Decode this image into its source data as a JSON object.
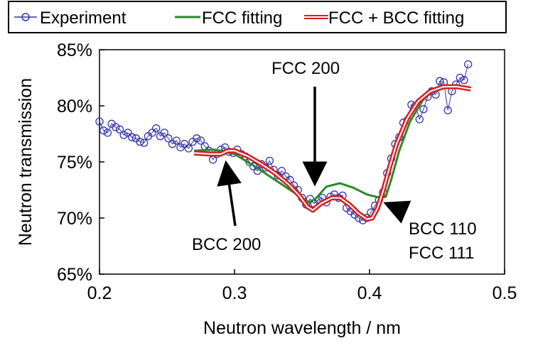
{
  "chart_data": {
    "type": "line",
    "title": "",
    "xlabel": "Neutron wavelength / nm",
    "ylabel": "Neutron transmission",
    "xlim": [
      0.2,
      0.5
    ],
    "ylim": [
      65,
      85
    ],
    "x_ticks": [
      "0.2",
      "0.3",
      "0.4",
      "0.5"
    ],
    "y_ticks": [
      "65%",
      "70%",
      "75%",
      "80%",
      "85%"
    ],
    "grid": false,
    "legend_position": "top",
    "legend": [
      {
        "label": "Experiment",
        "color": "#3333aa",
        "style": "line-with-open-circles"
      },
      {
        "label": "FCC fitting",
        "color": "#2a8a2a",
        "style": "line"
      },
      {
        "label": "FCC + BCC fitting",
        "color": "#d42020",
        "style": "double-line"
      }
    ],
    "series": [
      {
        "name": "Experiment",
        "color": "#3333aa",
        "marker": "open-circle",
        "points": [
          [
            0.2,
            78.6
          ],
          [
            0.203,
            77.8
          ],
          [
            0.206,
            77.6
          ],
          [
            0.209,
            78.4
          ],
          [
            0.212,
            78.1
          ],
          [
            0.215,
            77.9
          ],
          [
            0.218,
            77.4
          ],
          [
            0.221,
            77.6
          ],
          [
            0.224,
            77.2
          ],
          [
            0.227,
            77.1
          ],
          [
            0.23,
            76.8
          ],
          [
            0.233,
            76.7
          ],
          [
            0.236,
            77.3
          ],
          [
            0.239,
            77.6
          ],
          [
            0.242,
            78.0
          ],
          [
            0.245,
            77.3
          ],
          [
            0.248,
            77.6
          ],
          [
            0.251,
            77.1
          ],
          [
            0.254,
            76.6
          ],
          [
            0.257,
            76.9
          ],
          [
            0.26,
            76.3
          ],
          [
            0.263,
            76.6
          ],
          [
            0.266,
            76.2
          ],
          [
            0.269,
            76.8
          ],
          [
            0.272,
            77.1
          ],
          [
            0.275,
            76.9
          ],
          [
            0.278,
            76.4
          ],
          [
            0.281,
            76.0
          ],
          [
            0.284,
            75.2
          ],
          [
            0.287,
            75.7
          ],
          [
            0.29,
            76.1
          ],
          [
            0.293,
            76.3
          ],
          [
            0.296,
            75.9
          ],
          [
            0.299,
            75.8
          ],
          [
            0.302,
            76.1
          ],
          [
            0.305,
            75.7
          ],
          [
            0.308,
            75.5
          ],
          [
            0.311,
            75.0
          ],
          [
            0.314,
            74.6
          ],
          [
            0.317,
            74.2
          ],
          [
            0.32,
            74.8
          ],
          [
            0.323,
            74.5
          ],
          [
            0.326,
            75.1
          ],
          [
            0.329,
            74.3
          ],
          [
            0.332,
            73.8
          ],
          [
            0.335,
            74.2
          ],
          [
            0.338,
            73.7
          ],
          [
            0.341,
            73.4
          ],
          [
            0.344,
            72.9
          ],
          [
            0.347,
            72.5
          ],
          [
            0.35,
            71.8
          ],
          [
            0.353,
            71.2
          ],
          [
            0.356,
            71.7
          ],
          [
            0.359,
            71.3
          ],
          [
            0.362,
            71.6
          ],
          [
            0.365,
            71.8
          ],
          [
            0.368,
            71.4
          ],
          [
            0.371,
            71.9
          ],
          [
            0.374,
            72.1
          ],
          [
            0.377,
            71.8
          ],
          [
            0.38,
            72.0
          ],
          [
            0.383,
            70.9
          ],
          [
            0.386,
            70.6
          ],
          [
            0.389,
            70.3
          ],
          [
            0.392,
            70.0
          ],
          [
            0.395,
            69.8
          ],
          [
            0.398,
            70.0
          ],
          [
            0.401,
            70.5
          ],
          [
            0.404,
            71.1
          ],
          [
            0.407,
            71.6
          ],
          [
            0.41,
            72.3
          ],
          [
            0.413,
            74.0
          ],
          [
            0.416,
            75.3
          ],
          [
            0.419,
            76.6
          ],
          [
            0.422,
            77.2
          ],
          [
            0.425,
            78.5
          ],
          [
            0.428,
            78.7
          ],
          [
            0.431,
            80.1
          ],
          [
            0.434,
            80.0
          ],
          [
            0.437,
            78.8
          ],
          [
            0.44,
            79.7
          ],
          [
            0.443,
            80.8
          ],
          [
            0.446,
            81.3
          ],
          [
            0.449,
            81.0
          ],
          [
            0.452,
            82.2
          ],
          [
            0.455,
            82.1
          ],
          [
            0.458,
            79.6
          ],
          [
            0.461,
            81.3
          ],
          [
            0.464,
            81.9
          ],
          [
            0.467,
            82.5
          ],
          [
            0.47,
            82.3
          ],
          [
            0.473,
            83.7
          ]
        ]
      },
      {
        "name": "FCC fitting",
        "color": "#2a8a2a",
        "marker": "none",
        "points": [
          [
            0.27,
            76.0
          ],
          [
            0.285,
            76.1
          ],
          [
            0.3,
            75.7
          ],
          [
            0.315,
            74.6
          ],
          [
            0.33,
            73.4
          ],
          [
            0.345,
            72.2
          ],
          [
            0.355,
            71.4
          ],
          [
            0.36,
            71.7
          ],
          [
            0.368,
            72.8
          ],
          [
            0.378,
            73.1
          ],
          [
            0.388,
            72.7
          ],
          [
            0.398,
            72.1
          ],
          [
            0.408,
            71.8
          ],
          [
            0.412,
            71.9
          ],
          [
            0.416,
            73.4
          ],
          [
            0.422,
            76.0
          ],
          [
            0.43,
            78.6
          ],
          [
            0.44,
            80.6
          ],
          [
            0.45,
            81.6
          ],
          [
            0.46,
            81.8
          ],
          [
            0.47,
            81.7
          ],
          [
            0.475,
            81.6
          ]
        ]
      },
      {
        "name": "FCC + BCC fitting",
        "color": "#d42020",
        "marker": "none",
        "points": [
          [
            0.27,
            75.8
          ],
          [
            0.282,
            75.7
          ],
          [
            0.29,
            75.7
          ],
          [
            0.295,
            76.0
          ],
          [
            0.3,
            76.0
          ],
          [
            0.31,
            75.5
          ],
          [
            0.32,
            74.8
          ],
          [
            0.33,
            74.0
          ],
          [
            0.34,
            73.0
          ],
          [
            0.348,
            72.0
          ],
          [
            0.354,
            71.0
          ],
          [
            0.358,
            70.7
          ],
          [
            0.364,
            71.3
          ],
          [
            0.372,
            71.8
          ],
          [
            0.378,
            71.8
          ],
          [
            0.385,
            71.2
          ],
          [
            0.392,
            70.4
          ],
          [
            0.398,
            69.9
          ],
          [
            0.402,
            70.0
          ],
          [
            0.406,
            70.9
          ],
          [
            0.41,
            72.4
          ],
          [
            0.415,
            74.6
          ],
          [
            0.42,
            76.6
          ],
          [
            0.428,
            78.9
          ],
          [
            0.436,
            80.4
          ],
          [
            0.445,
            81.3
          ],
          [
            0.455,
            81.7
          ],
          [
            0.465,
            81.7
          ],
          [
            0.475,
            81.5
          ]
        ]
      }
    ],
    "annotations": [
      {
        "id": "fcc200",
        "text": "FCC 200",
        "points_to": [
          0.356,
          72.7
        ]
      },
      {
        "id": "bcc200",
        "text": "BCC 200",
        "points_to": [
          0.296,
          75.6
        ]
      },
      {
        "id": "bcc110",
        "lines": [
          "BCC 110",
          "FCC 111"
        ],
        "points_to": [
          0.411,
          71.7
        ]
      }
    ]
  }
}
